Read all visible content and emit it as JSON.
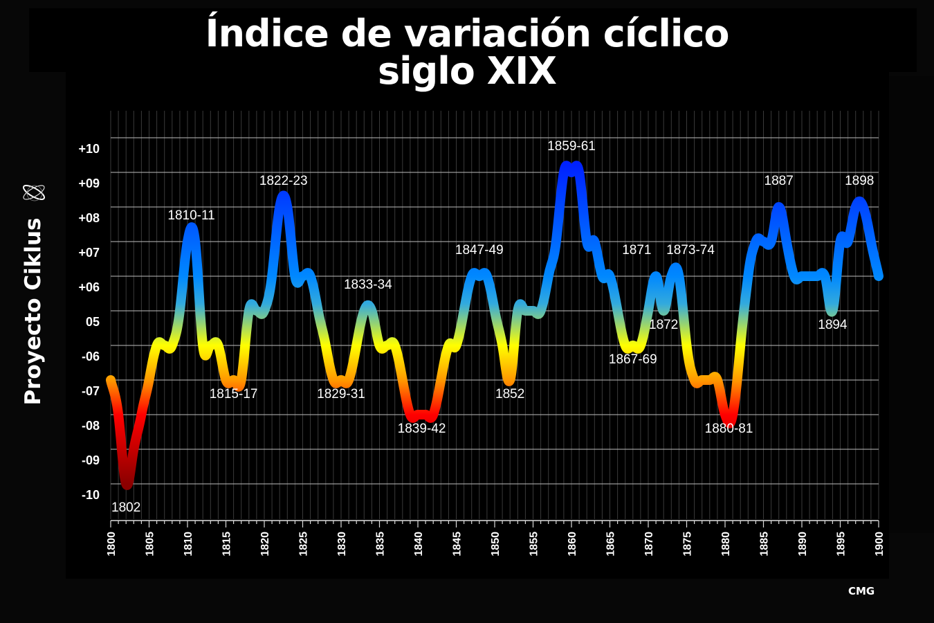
{
  "title": {
    "line1": "Índice de variación cíclico",
    "line2": "siglo XIX"
  },
  "side_label": "Proyecto Ciklus",
  "logo": "orbit-atom-logo",
  "credit": "CMG",
  "colors": {
    "background": "#000000",
    "grid": "#bfbfbf",
    "top": "#0022ff",
    "mid_blue": "#0088ff",
    "middle": "#ffff00",
    "orange": "#ff9900",
    "red": "#ff0000",
    "bottom": "#8b0000"
  },
  "chart_data": {
    "type": "line",
    "title": "Índice de variación cíclico siglo XIX",
    "xlabel": "",
    "ylabel": "",
    "xlim": [
      1800,
      1900
    ],
    "x_ticks": [
      "1800",
      "1805",
      "1810",
      "1815",
      "1820",
      "1825",
      "1830",
      "1835",
      "1840",
      "1845",
      "1850",
      "1855",
      "1860",
      "1865",
      "1870",
      "1875",
      "1880",
      "1885",
      "1890",
      "1895",
      "1900"
    ],
    "y_levels": [
      10,
      9,
      8,
      7,
      6,
      5,
      -6,
      -7,
      -8,
      -9,
      -10
    ],
    "y_tick_labels": [
      "+10",
      "+09",
      "+08",
      "+07",
      "+06",
      "05",
      "-06",
      "-07",
      "-08",
      "-09",
      "-10"
    ],
    "grid": true,
    "line_color": "vertical gradient blue (top) to yellow to red (bottom)",
    "series": [
      {
        "x": [
          1800,
          1801,
          1802,
          1803,
          1804,
          1805,
          1806,
          1807,
          1808,
          1809,
          1810,
          1811,
          1812,
          1813,
          1814,
          1815,
          1816,
          1817,
          1818,
          1819,
          1820,
          1821,
          1822,
          1823,
          1824,
          1825,
          1826,
          1827,
          1828,
          1829,
          1830,
          1831,
          1832,
          1833,
          1834,
          1835,
          1836,
          1837,
          1838,
          1839,
          1840,
          1841,
          1842,
          1843,
          1844,
          1845,
          1846,
          1847,
          1848,
          1849,
          1850,
          1851,
          1852,
          1853,
          1854,
          1855,
          1856,
          1857,
          1858,
          1859,
          1860,
          1861,
          1862,
          1863,
          1864,
          1865,
          1866,
          1867,
          1868,
          1869,
          1870,
          1871,
          1872,
          1873,
          1874,
          1875,
          1876,
          1877,
          1878,
          1879,
          1880,
          1881,
          1882,
          1883,
          1884,
          1885,
          1886,
          1887,
          1888,
          1889,
          1890,
          1891,
          1892,
          1893,
          1894,
          1895,
          1896,
          1897,
          1898,
          1899,
          1900
        ],
        "y": [
          -7,
          -8,
          -10,
          -9,
          -8,
          -7,
          -6,
          -6,
          -6,
          5,
          7,
          7,
          -6,
          -6,
          -6,
          -7,
          -7,
          -7,
          5,
          5,
          5,
          6,
          8,
          8,
          6,
          6,
          6,
          5,
          -6,
          -7,
          -7,
          -7,
          -6,
          5,
          5,
          -6,
          -6,
          -6,
          -7,
          -8,
          -8,
          -8,
          -8,
          -7,
          -6,
          -6,
          5,
          6,
          6,
          6,
          5,
          -6,
          -7,
          5,
          5,
          5,
          5,
          6,
          7,
          9,
          9,
          9,
          7,
          7,
          6,
          6,
          5,
          -6,
          -6,
          -6,
          5,
          6,
          5,
          6,
          6,
          -6,
          -7,
          -7,
          -7,
          -7,
          -8,
          -8,
          -6,
          6,
          7,
          7,
          7,
          8,
          7,
          6,
          6,
          6,
          6,
          6,
          5,
          7,
          7,
          8,
          8,
          7,
          6
        ]
      }
    ],
    "annotations": [
      {
        "text": "1802",
        "x": 1802,
        "y": -10,
        "position": "below"
      },
      {
        "text": "1810-11",
        "x": 1810.5,
        "y": 7,
        "position": "above"
      },
      {
        "text": "1815-17",
        "x": 1816,
        "y": -7,
        "position": "below"
      },
      {
        "text": "1822-23",
        "x": 1822.5,
        "y": 8,
        "position": "above"
      },
      {
        "text": "1829-31",
        "x": 1830,
        "y": -7,
        "position": "below"
      },
      {
        "text": "1833-34",
        "x": 1833.5,
        "y": 5,
        "position": "above"
      },
      {
        "text": "1839-42",
        "x": 1840.5,
        "y": -8,
        "position": "below"
      },
      {
        "text": "1847-49",
        "x": 1848,
        "y": 6,
        "position": "above"
      },
      {
        "text": "1852",
        "x": 1852,
        "y": -7,
        "position": "below"
      },
      {
        "text": "1859-61",
        "x": 1860,
        "y": 9,
        "position": "above"
      },
      {
        "text": "1867-69",
        "x": 1868,
        "y": -6,
        "position": "below"
      },
      {
        "text": "1871",
        "x": 1868.5,
        "y": 6,
        "position": "above"
      },
      {
        "text": "1872",
        "x": 1872,
        "y": 5,
        "position": "below"
      },
      {
        "text": "1873-74",
        "x": 1875.5,
        "y": 6,
        "position": "above"
      },
      {
        "text": "1880-81",
        "x": 1880.5,
        "y": -8,
        "position": "below"
      },
      {
        "text": "1887",
        "x": 1887,
        "y": 8,
        "position": "above"
      },
      {
        "text": "1894",
        "x": 1894,
        "y": 5,
        "position": "below"
      },
      {
        "text": "1898",
        "x": 1897.5,
        "y": 8,
        "position": "above"
      }
    ]
  }
}
